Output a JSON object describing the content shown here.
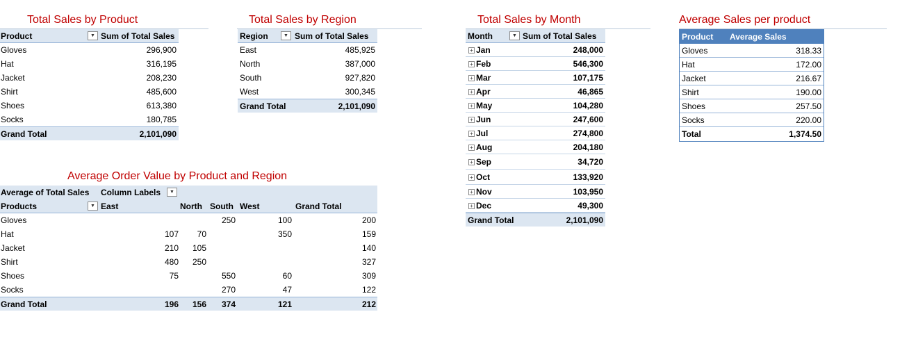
{
  "product_pivot": {
    "title": "Total Sales by Product",
    "col1": "Product",
    "col2": "Sum of Total Sales",
    "rows": [
      {
        "label": "Gloves",
        "value": "296,900"
      },
      {
        "label": "Hat",
        "value": "316,195"
      },
      {
        "label": "Jacket",
        "value": "208,230"
      },
      {
        "label": "Shirt",
        "value": "485,600"
      },
      {
        "label": "Shoes",
        "value": "613,380"
      },
      {
        "label": "Socks",
        "value": "180,785"
      }
    ],
    "total_label": "Grand Total",
    "total_value": "2,101,090"
  },
  "region_pivot": {
    "title": "Total Sales by Region",
    "col1": "Region",
    "col2": "Sum of Total Sales",
    "rows": [
      {
        "label": "East",
        "value": "485,925"
      },
      {
        "label": "North",
        "value": "387,000"
      },
      {
        "label": "South",
        "value": "927,820"
      },
      {
        "label": "West",
        "value": "300,345"
      }
    ],
    "total_label": "Grand Total",
    "total_value": "2,101,090"
  },
  "month_pivot": {
    "title": "Total Sales by Month",
    "col1": "Month",
    "col2": "Sum of Total Sales",
    "rows": [
      {
        "label": "Jan",
        "value": "248,000"
      },
      {
        "label": "Feb",
        "value": "546,300"
      },
      {
        "label": "Mar",
        "value": "107,175"
      },
      {
        "label": "Apr",
        "value": "46,865"
      },
      {
        "label": "May",
        "value": "104,280"
      },
      {
        "label": "Jun",
        "value": "247,600"
      },
      {
        "label": "Jul",
        "value": "274,800"
      },
      {
        "label": "Aug",
        "value": "204,180"
      },
      {
        "label": "Sep",
        "value": "34,720"
      },
      {
        "label": "Oct",
        "value": "133,920"
      },
      {
        "label": "Nov",
        "value": "103,950"
      },
      {
        "label": "Dec",
        "value": "49,300"
      }
    ],
    "total_label": "Grand Total",
    "total_value": "2,101,090"
  },
  "avg_pivot": {
    "title": "Average Sales per product",
    "col1": "Product",
    "col2": "Average Sales",
    "rows": [
      {
        "label": "Gloves",
        "value": "318.33"
      },
      {
        "label": "Hat",
        "value": "172.00"
      },
      {
        "label": "Jacket",
        "value": "216.67"
      },
      {
        "label": "Shirt",
        "value": "190.00"
      },
      {
        "label": "Shoes",
        "value": "257.50"
      },
      {
        "label": "Socks",
        "value": "220.00"
      }
    ],
    "total_label": "Total",
    "total_value": "1,374.50"
  },
  "aov_pivot": {
    "title": "Average Order Value by Product and Region",
    "measure_label": "Average of Total Sales",
    "column_labels": "Column Labels",
    "row_field": "Products",
    "columns": [
      "East",
      "North",
      "South",
      "West",
      "Grand Total"
    ],
    "rows": [
      {
        "label": "Gloves",
        "cells": [
          "",
          "",
          "250",
          "100",
          "200"
        ]
      },
      {
        "label": "Hat",
        "cells": [
          "107",
          "70",
          "",
          "350",
          "159"
        ]
      },
      {
        "label": "Jacket",
        "cells": [
          "210",
          "105",
          "",
          "",
          "140"
        ]
      },
      {
        "label": "Shirt",
        "cells": [
          "480",
          "250",
          "",
          "",
          "327"
        ]
      },
      {
        "label": "Shoes",
        "cells": [
          "75",
          "",
          "550",
          "60",
          "309"
        ]
      },
      {
        "label": "Socks",
        "cells": [
          "",
          "",
          "270",
          "47",
          "122"
        ]
      }
    ],
    "total_label": "Grand Total",
    "total_cells": [
      "196",
      "156",
      "374",
      "121",
      "212"
    ]
  },
  "icons": {
    "dropdown": "filter-dropdown-icon",
    "expand": "expand-plus-icon"
  },
  "colors": {
    "title": "#c00000",
    "header_fill": "#dce6f1",
    "avg_header_fill": "#4f81bd"
  }
}
